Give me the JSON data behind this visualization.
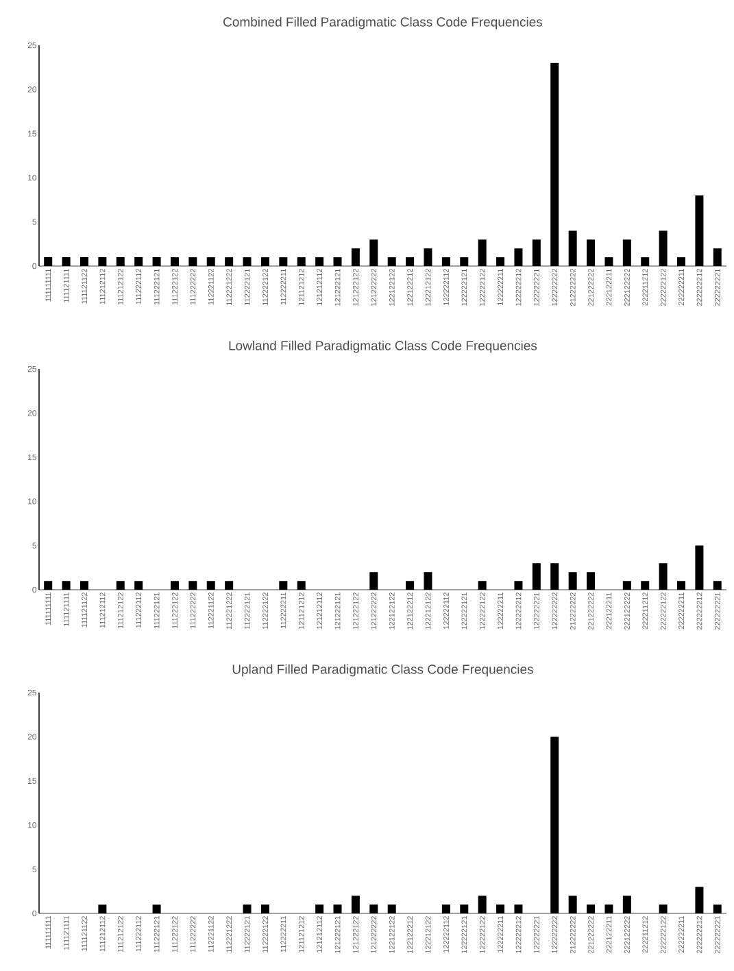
{
  "chart_data": [
    {
      "type": "bar",
      "title": "Combined Filled Paradigmatic Class Code Frequencies",
      "color": "#000000",
      "ylim": [
        0,
        25
      ],
      "yticks": [
        0,
        5,
        10,
        15,
        20,
        25
      ],
      "categories": [
        "111111111",
        "111121111",
        "111121122",
        "111212112",
        "111212122",
        "111222112",
        "111222121",
        "111222122",
        "111222222",
        "112221122",
        "112221222",
        "112222121",
        "112222122",
        "112222211",
        "121121212",
        "121212112",
        "121222121",
        "121222122",
        "121222222",
        "122122122",
        "122122212",
        "122212122",
        "122222112",
        "122222121",
        "122222122",
        "122222211",
        "122222212",
        "122222221",
        "122222222",
        "212222222",
        "221222222",
        "222122211",
        "222122222",
        "222211212",
        "222222122",
        "222222211",
        "222222212",
        "222222221"
      ],
      "values": [
        1,
        1,
        1,
        1,
        1,
        1,
        1,
        1,
        1,
        1,
        1,
        1,
        1,
        1,
        1,
        1,
        1,
        2,
        3,
        1,
        1,
        2,
        1,
        1,
        3,
        1,
        2,
        3,
        23,
        4,
        3,
        1,
        3,
        1,
        4,
        1,
        8,
        2
      ]
    },
    {
      "type": "bar",
      "title": "Lowland Filled Paradigmatic Class Code Frequencies",
      "color": "#000000",
      "ylim": [
        0,
        25
      ],
      "yticks": [
        0,
        5,
        10,
        15,
        20,
        25
      ],
      "categories": [
        "111111111",
        "111121111",
        "111121122",
        "111212112",
        "111212122",
        "111222112",
        "111222121",
        "111222122",
        "111222222",
        "112221122",
        "112221222",
        "112222121",
        "112222122",
        "112222211",
        "121121212",
        "121212112",
        "121222121",
        "121222122",
        "121222222",
        "122122122",
        "122122212",
        "122212122",
        "122222112",
        "122222121",
        "122222122",
        "122222211",
        "122222212",
        "122222221",
        "122222222",
        "212222222",
        "221222222",
        "222122211",
        "222122222",
        "222211212",
        "222222122",
        "222222211",
        "222222212",
        "222222221"
      ],
      "values": [
        1,
        1,
        1,
        0,
        1,
        1,
        0,
        1,
        1,
        1,
        1,
        0,
        0,
        1,
        1,
        0,
        0,
        0,
        2,
        0,
        1,
        2,
        0,
        0,
        1,
        0,
        1,
        3,
        3,
        2,
        2,
        0,
        1,
        1,
        3,
        1,
        5,
        1
      ]
    },
    {
      "type": "bar",
      "title": "Upland Filled Paradigmatic Class Code Frequencies",
      "color": "#000000",
      "ylim": [
        0,
        25
      ],
      "yticks": [
        0,
        5,
        10,
        15,
        20,
        25
      ],
      "categories": [
        "111111111",
        "111121111",
        "111121122",
        "111212112",
        "111212122",
        "111222112",
        "111222121",
        "111222122",
        "111222222",
        "112221122",
        "112221222",
        "112222121",
        "112222122",
        "112222211",
        "121121212",
        "121212112",
        "121222121",
        "121222122",
        "121222222",
        "122122122",
        "122122212",
        "122212122",
        "122222112",
        "122222121",
        "122222122",
        "122222211",
        "122222212",
        "122222221",
        "122222222",
        "212222222",
        "221222222",
        "222122211",
        "222122222",
        "222211212",
        "222222122",
        "222222211",
        "222222212",
        "222222221"
      ],
      "values": [
        0,
        0,
        0,
        1,
        0,
        0,
        1,
        0,
        0,
        0,
        0,
        1,
        1,
        0,
        0,
        1,
        1,
        2,
        1,
        1,
        0,
        0,
        1,
        1,
        2,
        1,
        1,
        0,
        20,
        2,
        1,
        1,
        2,
        0,
        1,
        0,
        3,
        1
      ]
    }
  ]
}
